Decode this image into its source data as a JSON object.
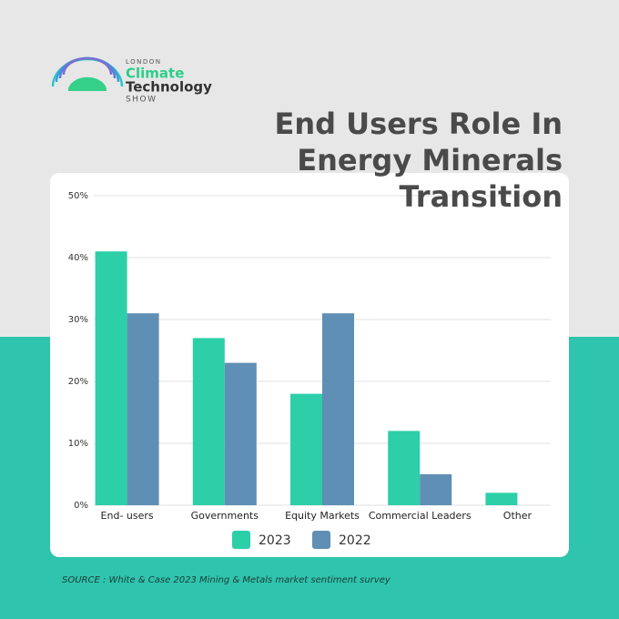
{
  "logo": {
    "top": "LONDON",
    "line1": "Climate",
    "line2": "Technology",
    "bottom": "SHOW"
  },
  "chart_data": {
    "type": "bar",
    "title": "End Users Role In Energy Minerals Transition",
    "categories": [
      "End- users",
      "Governments",
      "Equity Markets",
      "Commercial Leaders",
      "Other"
    ],
    "series": [
      {
        "name": "2023",
        "color": "#2ccfa8",
        "values": [
          41,
          27,
          18,
          12,
          2
        ]
      },
      {
        "name": "2022",
        "color": "#5f8fb4",
        "values": [
          31,
          23,
          31,
          5,
          0
        ]
      }
    ],
    "ylim": [
      0,
      50
    ],
    "yticks": [
      {
        "value": 0,
        "label": "0%"
      },
      {
        "value": 10,
        "label": "10%"
      },
      {
        "value": 20,
        "label": "20%"
      },
      {
        "value": 30,
        "label": "30%"
      },
      {
        "value": 40,
        "label": "40%"
      },
      {
        "value": 50,
        "label": "50%"
      }
    ],
    "grid": true,
    "legend": "bottom",
    "source": "SOURCE : White & Case 2023 Mining & Metals market sentiment survey"
  }
}
